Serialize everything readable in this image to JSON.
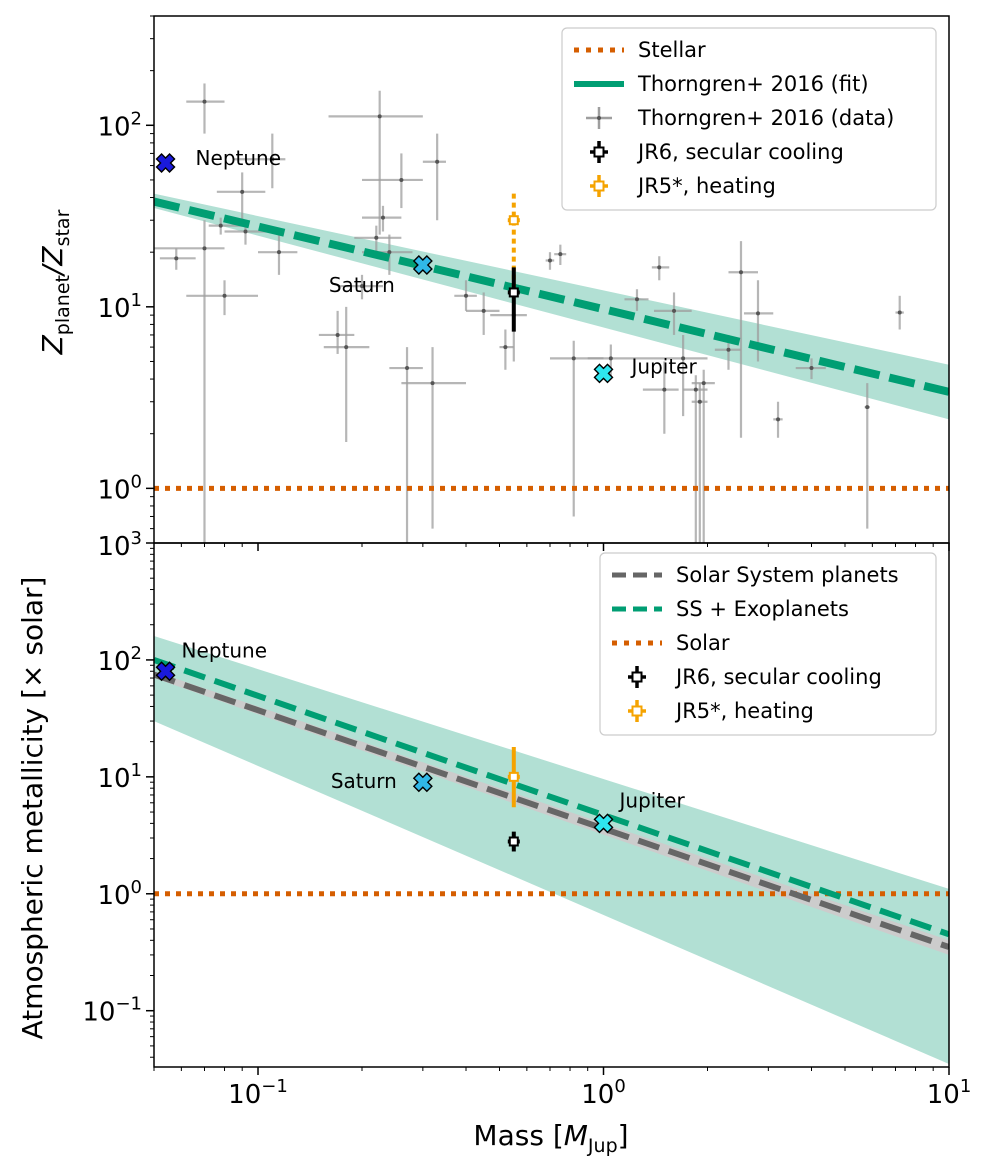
{
  "colors": {
    "stellar": "#d55e00",
    "fit": "#009e73",
    "fit_band": "#b2e0d4",
    "data_pts": "#9e9e9e",
    "jr6": "#000000",
    "jr5": "#f5a300",
    "ss": "#666666",
    "ss_band": "#cccccc",
    "neptune": "#1a1adc",
    "saturn_jupiter": "#30b8e8",
    "jupiter": "#2ee6f0"
  },
  "chart_data": [
    {
      "type": "scatter",
      "id": "top",
      "xscale": "log",
      "yscale": "log",
      "xlim": [
        0.05,
        10
      ],
      "ylim": [
        0.5,
        400
      ],
      "ylabel_main": "Z",
      "ylabel_sub1": "planet",
      "ylabel_sep": "/Z",
      "ylabel_sub2": "star",
      "yticks": [
        {
          "value": 1,
          "mant": "10",
          "exp": "0"
        },
        {
          "value": 10,
          "mant": "10",
          "exp": "1"
        },
        {
          "value": 100,
          "mant": "10",
          "exp": "2"
        }
      ],
      "stellar_level": 1,
      "fit": {
        "x": [
          0.05,
          10
        ],
        "y": [
          38,
          3.4
        ],
        "lo": [
          35,
          2.4
        ],
        "hi": [
          42,
          4.8
        ]
      },
      "data": [
        {
          "x": 0.058,
          "y": 18.5,
          "xlo": 0.052,
          "xhi": 0.066,
          "ylo": 16,
          "yhi": 21
        },
        {
          "x": 0.07,
          "y": 135,
          "xlo": 0.062,
          "xhi": 0.08,
          "ylo": 90,
          "yhi": 170
        },
        {
          "x": 0.07,
          "y": 21,
          "xlo": 0.05,
          "xhi": 0.08,
          "ylo": 0.4,
          "yhi": 30
        },
        {
          "x": 0.078,
          "y": 28,
          "xlo": 0.072,
          "xhi": 0.09,
          "ylo": 25,
          "yhi": 31
        },
        {
          "x": 0.08,
          "y": 11.5,
          "xlo": 0.062,
          "xhi": 0.1,
          "ylo": 9,
          "yhi": 14
        },
        {
          "x": 0.09,
          "y": 43,
          "xlo": 0.076,
          "xhi": 0.105,
          "ylo": 28,
          "yhi": 55
        },
        {
          "x": 0.092,
          "y": 26,
          "xlo": 0.08,
          "xhi": 0.11,
          "ylo": 22,
          "yhi": 30
        },
        {
          "x": 0.11,
          "y": 65,
          "xlo": 0.085,
          "xhi": 0.12,
          "ylo": 45,
          "yhi": 90
        },
        {
          "x": 0.115,
          "y": 20,
          "xlo": 0.1,
          "xhi": 0.13,
          "ylo": 15,
          "yhi": 27
        },
        {
          "x": 0.17,
          "y": 7,
          "xlo": 0.15,
          "xhi": 0.19,
          "ylo": 5.5,
          "yhi": 9.5
        },
        {
          "x": 0.18,
          "y": 6,
          "xlo": 0.155,
          "xhi": 0.21,
          "ylo": 1.8,
          "yhi": 10
        },
        {
          "x": 0.2,
          "y": 13,
          "xlo": 0.17,
          "xhi": 0.23,
          "ylo": 11,
          "yhi": 15
        },
        {
          "x": 0.22,
          "y": 24,
          "xlo": 0.19,
          "xhi": 0.26,
          "ylo": 20,
          "yhi": 28
        },
        {
          "x": 0.23,
          "y": 31,
          "xlo": 0.2,
          "xhi": 0.26,
          "ylo": 26,
          "yhi": 36
        },
        {
          "x": 0.225,
          "y": 112,
          "xlo": 0.16,
          "xhi": 0.3,
          "ylo": 25,
          "yhi": 155
        },
        {
          "x": 0.24,
          "y": 20,
          "xlo": 0.2,
          "xhi": 0.28,
          "ylo": 15,
          "yhi": 25
        },
        {
          "x": 0.26,
          "y": 50,
          "xlo": 0.2,
          "xhi": 0.3,
          "ylo": 35,
          "yhi": 70
        },
        {
          "x": 0.27,
          "y": 4.6,
          "xlo": 0.24,
          "xhi": 0.3,
          "ylo": 0.4,
          "yhi": 6
        },
        {
          "x": 0.32,
          "y": 3.8,
          "xlo": 0.26,
          "xhi": 0.4,
          "ylo": 0.6,
          "yhi": 6
        },
        {
          "x": 0.33,
          "y": 63,
          "xlo": 0.3,
          "xhi": 0.35,
          "ylo": 30,
          "yhi": 90
        },
        {
          "x": 0.4,
          "y": 11.5,
          "xlo": 0.37,
          "xhi": 0.43,
          "ylo": 9.5,
          "yhi": 14
        },
        {
          "x": 0.45,
          "y": 9.5,
          "xlo": 0.4,
          "xhi": 0.5,
          "ylo": 7,
          "yhi": 12
        },
        {
          "x": 0.52,
          "y": 6,
          "xlo": 0.5,
          "xhi": 0.55,
          "ylo": 4.5,
          "yhi": 7.5
        },
        {
          "x": 0.55,
          "y": 9,
          "xlo": 0.47,
          "xhi": 0.6,
          "ylo": 5,
          "yhi": 12
        },
        {
          "x": 0.7,
          "y": 18,
          "xlo": 0.68,
          "xhi": 0.72,
          "ylo": 16,
          "yhi": 20
        },
        {
          "x": 0.75,
          "y": 19.5,
          "xlo": 0.72,
          "xhi": 0.78,
          "ylo": 17,
          "yhi": 22
        },
        {
          "x": 0.82,
          "y": 5.2,
          "xlo": 0.7,
          "xhi": 1.0,
          "ylo": 0.7,
          "yhi": 6.5
        },
        {
          "x": 1.05,
          "y": 5.2,
          "xlo": 0.9,
          "xhi": 1.4,
          "ylo": 4,
          "yhi": 6.2
        },
        {
          "x": 1.25,
          "y": 11,
          "xlo": 1.15,
          "xhi": 1.35,
          "ylo": 9.5,
          "yhi": 12.5
        },
        {
          "x": 1.45,
          "y": 16.5,
          "xlo": 1.38,
          "xhi": 1.55,
          "ylo": 14,
          "yhi": 19
        },
        {
          "x": 1.5,
          "y": 3.5,
          "xlo": 1.3,
          "xhi": 1.65,
          "ylo": 2,
          "yhi": 5
        },
        {
          "x": 1.6,
          "y": 9.5,
          "xlo": 1.4,
          "xhi": 1.8,
          "ylo": 7,
          "yhi": 12
        },
        {
          "x": 1.7,
          "y": 5.2,
          "xlo": 1.4,
          "xhi": 2.0,
          "ylo": 2.5,
          "yhi": 7
        },
        {
          "x": 1.85,
          "y": 3.5,
          "xlo": 1.7,
          "xhi": 2.0,
          "ylo": 0.4,
          "yhi": 4.2
        },
        {
          "x": 1.9,
          "y": 3,
          "xlo": 1.8,
          "xhi": 2.0,
          "ylo": 0.4,
          "yhi": 3.8
        },
        {
          "x": 1.95,
          "y": 3.8,
          "xlo": 1.8,
          "xhi": 2.1,
          "ylo": 0.4,
          "yhi": 4.5
        },
        {
          "x": 2.3,
          "y": 5.8,
          "xlo": 2.1,
          "xhi": 2.5,
          "ylo": 4.5,
          "yhi": 7
        },
        {
          "x": 2.5,
          "y": 15.5,
          "xlo": 2.3,
          "xhi": 2.8,
          "ylo": 1.9,
          "yhi": 23
        },
        {
          "x": 2.8,
          "y": 9.2,
          "xlo": 2.55,
          "xhi": 3.1,
          "ylo": 5,
          "yhi": 14
        },
        {
          "x": 3.2,
          "y": 2.4,
          "xlo": 3.1,
          "xhi": 3.3,
          "ylo": 1.9,
          "yhi": 3
        },
        {
          "x": 4.0,
          "y": 4.6,
          "xlo": 3.6,
          "xhi": 4.4,
          "ylo": 4,
          "yhi": 5.2
        },
        {
          "x": 5.8,
          "y": 2.8,
          "xlo": 5.7,
          "xhi": 5.9,
          "ylo": 0.6,
          "yhi": 3.8
        },
        {
          "x": 7.2,
          "y": 9.3,
          "xlo": 7.0,
          "xhi": 7.4,
          "ylo": 7.5,
          "yhi": 11.5
        }
      ],
      "jr6": {
        "x": 0.55,
        "y": 12,
        "ylo": 7.3,
        "yhi": 16.5
      },
      "jr5": {
        "x": 0.55,
        "y": 30,
        "ylo": 12,
        "yhi": 42
      },
      "planets": [
        {
          "name": "Neptune",
          "x": 0.054,
          "y": 62
        },
        {
          "name": "Saturn",
          "x": 0.3,
          "y": 17
        },
        {
          "name": "Jupiter",
          "x": 1.0,
          "y": 4.3
        }
      ],
      "legend": [
        "Stellar",
        "Thorngren+ 2016 (fit)",
        "Thorngren+ 2016 (data)",
        "JR6, secular cooling",
        "JR5*, heating"
      ]
    },
    {
      "type": "line",
      "id": "bottom",
      "xscale": "log",
      "yscale": "log",
      "xlim": [
        0.05,
        10
      ],
      "ylim": [
        0.033,
        1000
      ],
      "yticks": [
        {
          "value": 0.1,
          "mant": "10",
          "exp": "−1"
        },
        {
          "value": 1,
          "mant": "10",
          "exp": "0"
        },
        {
          "value": 10,
          "mant": "10",
          "exp": "1"
        },
        {
          "value": 100,
          "mant": "10",
          "exp": "2"
        },
        {
          "value": 1000,
          "mant": "10",
          "exp": "3"
        }
      ],
      "xticks": [
        {
          "value": 0.1,
          "mant": "10",
          "exp": "−1"
        },
        {
          "value": 1,
          "mant": "10",
          "exp": "0"
        },
        {
          "value": 10,
          "mant": "10",
          "exp": "1"
        }
      ],
      "solar_level": 1,
      "ss_fit": {
        "x": [
          0.05,
          10
        ],
        "y": [
          75,
          0.35
        ],
        "lo": [
          70,
          0.3
        ],
        "hi": [
          80,
          0.4
        ]
      },
      "exo_fit": {
        "x": [
          0.05,
          10
        ],
        "y": [
          100,
          0.45
        ],
        "lo": [
          30,
          0.035
        ],
        "hi": [
          160,
          1.1
        ]
      },
      "jr6": {
        "x": 0.55,
        "y": 2.8,
        "ylo": 2.3,
        "yhi": 3.4
      },
      "jr5": {
        "x": 0.55,
        "y": 10,
        "ylo": 5.5,
        "yhi": 18
      },
      "planets": [
        {
          "name": "Neptune",
          "x": 0.054,
          "y": 80
        },
        {
          "name": "Saturn",
          "x": 0.3,
          "y": 9
        },
        {
          "name": "Jupiter",
          "x": 1.0,
          "y": 4
        }
      ],
      "legend": [
        "Solar System planets",
        "SS + Exoplanets",
        "Solar",
        "JR6, secular cooling",
        "JR5*, heating"
      ],
      "ylabel": "Atmospheric metallicity [× solar]",
      "xlabel_main": "Mass [",
      "xlabel_italic": "M",
      "xlabel_sub": "Jup",
      "xlabel_close": "]"
    }
  ]
}
